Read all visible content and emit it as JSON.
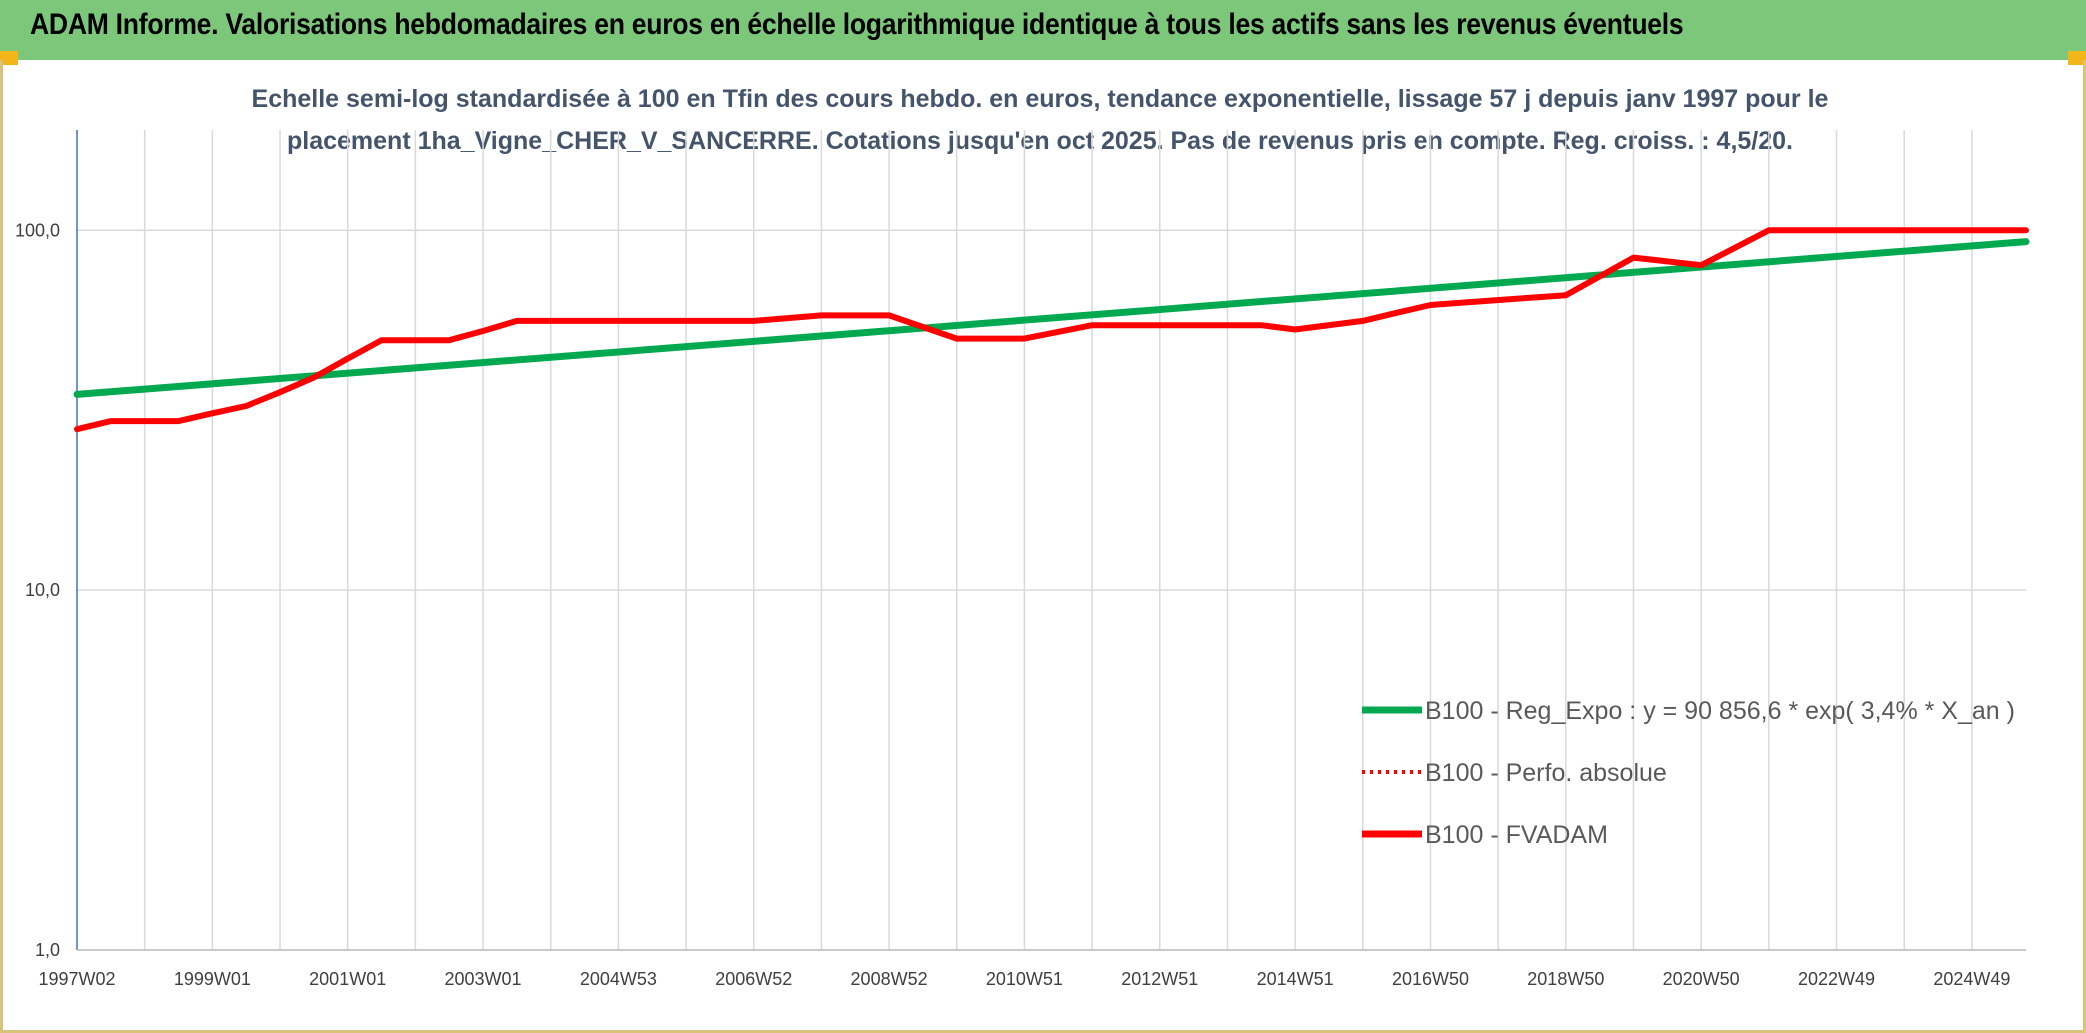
{
  "header": {
    "title": "ADAM Informe. Valorisations hebdomadaires en euros en échelle logarithmique identique à tous les actifs sans les revenus éventuels"
  },
  "colors": {
    "header_bg": "#7dc77a",
    "corner_accent": "#f2b51a",
    "regression": "#00a94f",
    "fvadam": "#ff0000",
    "perfo": "#ff0000",
    "gridline": "#d9d9d9",
    "axis": "#4472c4"
  },
  "chart_data": {
    "type": "line",
    "subtitle_lines": [
      "Echelle semi-log standardisée à 100 en Tfin des cours hebdo. en euros, tendance exponentielle, lissage 57 j depuis janv 1997 pour le",
      "placement 1ha_Vigne_CHER_V_SANCERRE. Cotations jusqu'en oct 2025. Pas de revenus pris en compte. Reg. croiss. : 4,5/20."
    ],
    "y_scale": "log",
    "ylim": [
      1,
      190
    ],
    "y_ticks": [
      {
        "value": 1,
        "label": "1,0"
      },
      {
        "value": 10,
        "label": "10,0"
      },
      {
        "value": 100,
        "label": "100,0"
      }
    ],
    "x_range_years": [
      1997.0,
      2025.8
    ],
    "x_ticks": [
      {
        "year": 1997.0,
        "label": "1997W02"
      },
      {
        "year": 1999.0,
        "label": "1999W01"
      },
      {
        "year": 2001.0,
        "label": "2001W01"
      },
      {
        "year": 2003.0,
        "label": "2003W01"
      },
      {
        "year": 2005.0,
        "label": "2004W53"
      },
      {
        "year": 2007.0,
        "label": "2006W52"
      },
      {
        "year": 2009.0,
        "label": "2008W52"
      },
      {
        "year": 2011.0,
        "label": "2010W51"
      },
      {
        "year": 2013.0,
        "label": "2012W51"
      },
      {
        "year": 2015.0,
        "label": "2014W51"
      },
      {
        "year": 2017.0,
        "label": "2016W50"
      },
      {
        "year": 2019.0,
        "label": "2018W50"
      },
      {
        "year": 2021.0,
        "label": "2020W50"
      },
      {
        "year": 2023.0,
        "label": "2022W49"
      },
      {
        "year": 2025.0,
        "label": "2024W49"
      }
    ],
    "series": [
      {
        "name": "B100 - Reg_Expo : y = 90 856,6 * exp( 3,4% *  X_an )",
        "style": "solid-green",
        "x": [
          1997.0,
          2025.8
        ],
        "y": [
          35.0,
          93.0
        ]
      },
      {
        "name": "B100 - Perfo. absolue",
        "style": "dotted-red",
        "x": [],
        "y": []
      },
      {
        "name": "B100 - FVADAM",
        "style": "solid-red",
        "x": [
          1997.0,
          1997.5,
          1998.5,
          1999.0,
          1999.5,
          2000.0,
          2000.5,
          2001.0,
          2001.5,
          2002.5,
          2003.0,
          2003.5,
          2005.0,
          2007.0,
          2008.0,
          2009.0,
          2010.0,
          2011.0,
          2012.0,
          2013.0,
          2014.5,
          2015.0,
          2016.0,
          2016.5,
          2017.0,
          2017.5,
          2018.5,
          2019.0,
          2020.0,
          2021.0,
          2022.0,
          2024.0,
          2025.8
        ],
        "y": [
          28,
          29.5,
          29.5,
          31,
          32.5,
          35.5,
          39,
          44,
          49.5,
          49.5,
          52.5,
          56,
          56,
          56,
          58,
          58,
          50,
          50,
          54.5,
          54.5,
          54.5,
          53,
          56,
          59,
          62,
          63,
          65,
          66,
          84,
          80,
          100,
          100,
          100
        ]
      }
    ],
    "legend_position": "bottom-right"
  }
}
